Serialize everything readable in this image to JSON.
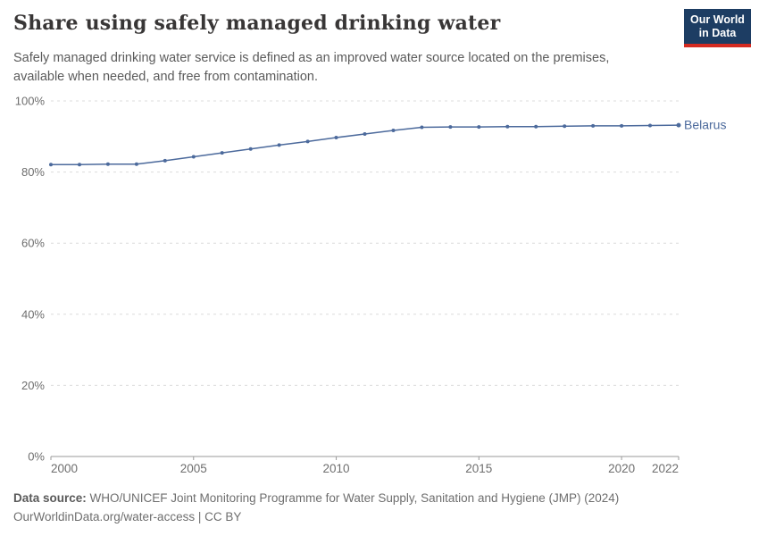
{
  "header": {
    "title": "Share using safely managed drinking water",
    "subtitle_line1": "Safely managed drinking water service is defined as an improved water source located on the premises,",
    "subtitle_line2": "available when needed, and free from contamination.",
    "logo": {
      "line1": "Our World",
      "line2": "in Data",
      "bg_color": "#1d3d63",
      "accent_color": "#d42b21"
    }
  },
  "chart_data": {
    "type": "line",
    "title": "Share using safely managed drinking water",
    "xlabel": "",
    "ylabel": "",
    "x": [
      2000,
      2001,
      2002,
      2003,
      2004,
      2005,
      2006,
      2007,
      2008,
      2009,
      2010,
      2011,
      2012,
      2013,
      2014,
      2015,
      2016,
      2017,
      2018,
      2019,
      2020,
      2021,
      2022
    ],
    "series": [
      {
        "name": "Belarus",
        "color": "#4c6a9c",
        "values": [
          82.1,
          82.1,
          82.2,
          82.2,
          83.2,
          84.3,
          85.4,
          86.5,
          87.6,
          88.6,
          89.7,
          90.7,
          91.7,
          92.6,
          92.7,
          92.7,
          92.8,
          92.8,
          92.9,
          93.0,
          93.0,
          93.1,
          93.2
        ]
      }
    ],
    "x_ticks": [
      2000,
      2005,
      2010,
      2015,
      2020,
      2022
    ],
    "y_ticks": [
      0,
      20,
      40,
      60,
      80,
      100
    ],
    "y_tick_suffix": "%",
    "xlim": [
      2000,
      2022
    ],
    "ylim": [
      0,
      100
    ],
    "grid": "horizontal-dashed",
    "legend_position": "end-of-line-label",
    "grid_color": "#dcdcdc",
    "axis_color": "#9a9a9a",
    "tick_label_color": "#6e6e6e"
  },
  "footer": {
    "source_label": "Data source:",
    "source_text": "WHO/UNICEF Joint Monitoring Programme for Water Supply, Sanitation and Hygiene (JMP) (2024)",
    "citation": "OurWorldinData.org/water-access | CC BY"
  }
}
